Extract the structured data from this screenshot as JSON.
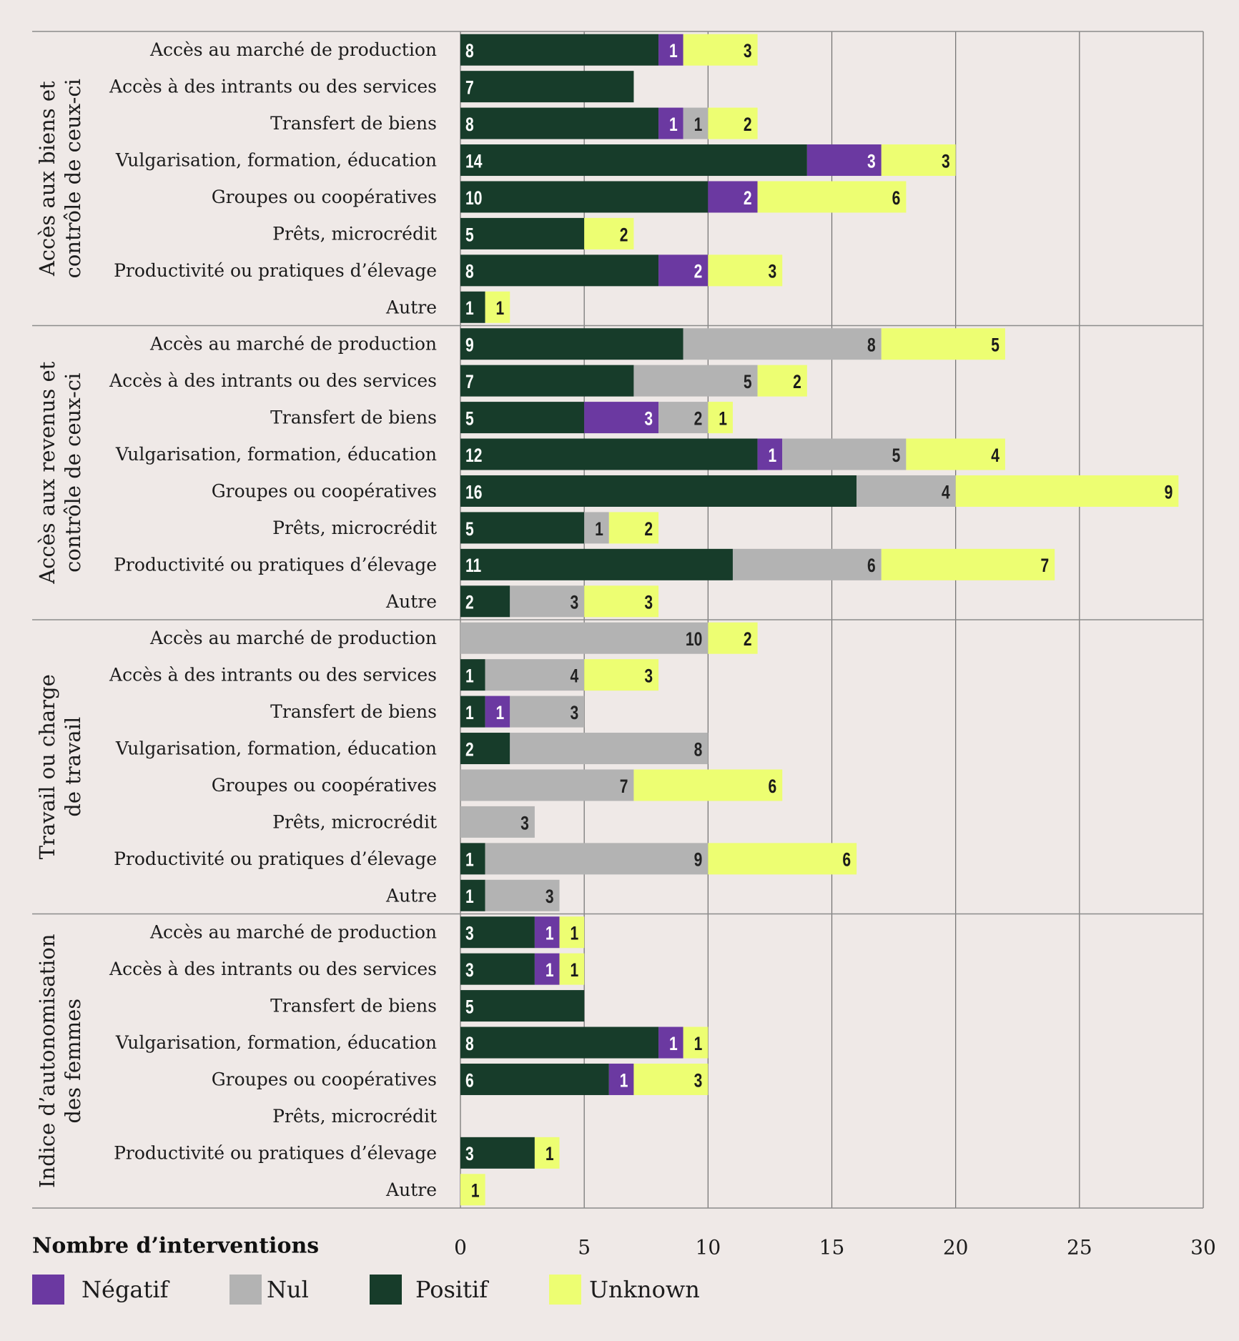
{
  "chart_data": {
    "type": "bar",
    "stacked": true,
    "xlabel": "Nombre d’interventions",
    "xlim": [
      0,
      30
    ],
    "xticks": [
      0,
      5,
      10,
      15,
      20,
      25,
      30
    ],
    "grid": true,
    "categories": [
      "Accès au marché de production",
      "Accès à des intrants ou des services",
      "Transfert de biens",
      "Vulgarisation, formation, éducation",
      "Groupes ou coopératives",
      "Prêts, microcrédit",
      "Productivité ou pratiques d’élevage",
      "Autre"
    ],
    "series": [
      {
        "name": "Positif",
        "color": "#173c2a",
        "label_color": "#ffffff"
      },
      {
        "name": "Négatif",
        "color": "#6b39a1",
        "label_color": "#ffffff"
      },
      {
        "name": "Nul",
        "color": "#b3b3b3",
        "label_color": "#222222"
      },
      {
        "name": "Unknown",
        "color": "#edfe72",
        "label_color": "#1a1a1a"
      }
    ],
    "legend_order": [
      1,
      2,
      0,
      3
    ],
    "groups": [
      {
        "title": [
          "Accès aux biens et",
          "contrôle de ceux-ci"
        ],
        "values": [
          [
            8,
            1,
            0,
            3
          ],
          [
            7,
            0,
            0,
            0
          ],
          [
            8,
            1,
            1,
            2
          ],
          [
            14,
            3,
            0,
            3
          ],
          [
            10,
            2,
            0,
            6
          ],
          [
            5,
            0,
            0,
            2
          ],
          [
            8,
            2,
            0,
            3
          ],
          [
            1,
            0,
            0,
            1
          ]
        ]
      },
      {
        "title": [
          "Accès aux revenus et",
          "contrôle de ceux-ci"
        ],
        "values": [
          [
            9,
            0,
            8,
            5
          ],
          [
            7,
            0,
            5,
            2
          ],
          [
            5,
            3,
            2,
            1
          ],
          [
            12,
            1,
            5,
            4
          ],
          [
            16,
            0,
            4,
            9
          ],
          [
            5,
            0,
            1,
            2
          ],
          [
            11,
            0,
            6,
            7
          ],
          [
            2,
            0,
            3,
            3
          ]
        ]
      },
      {
        "title": [
          "Travail ou charge",
          "de travail"
        ],
        "values": [
          [
            0,
            0,
            10,
            2
          ],
          [
            1,
            0,
            4,
            3
          ],
          [
            1,
            1,
            3,
            0
          ],
          [
            2,
            0,
            8,
            0
          ],
          [
            0,
            0,
            7,
            6
          ],
          [
            0,
            0,
            3,
            0
          ],
          [
            1,
            0,
            9,
            6
          ],
          [
            1,
            0,
            3,
            0
          ]
        ]
      },
      {
        "title": [
          "Indice d’autonomisation",
          "des femmes"
        ],
        "values": [
          [
            3,
            1,
            0,
            1
          ],
          [
            3,
            1,
            0,
            1
          ],
          [
            5,
            0,
            0,
            0
          ],
          [
            8,
            1,
            0,
            1
          ],
          [
            6,
            1,
            0,
            3
          ],
          [
            0,
            0,
            0,
            0
          ],
          [
            3,
            0,
            0,
            1
          ],
          [
            0,
            0,
            0,
            1
          ]
        ]
      }
    ]
  }
}
